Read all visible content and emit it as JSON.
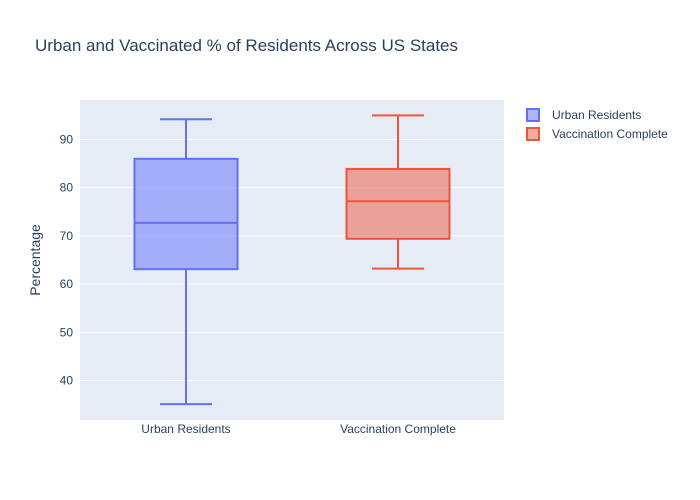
{
  "chart_data": {
    "type": "box",
    "title": "Urban and Vaccinated % of Residents Across US States",
    "xlabel": "",
    "ylabel": "Percentage",
    "ylim": [
      31.8,
      98.2
    ],
    "yticks": [
      40,
      50,
      60,
      70,
      80,
      90
    ],
    "grid": true,
    "legend_position": "top-right",
    "categories": [
      "Urban Residents",
      "Vaccination Complete"
    ],
    "series": [
      {
        "name": "Urban Residents",
        "color": "#636efa",
        "min": 35.1,
        "q1": 63.1,
        "median": 72.7,
        "q3": 86.0,
        "max": 94.2
      },
      {
        "name": "Vaccination Complete",
        "color": "#ef553b",
        "min": 63.2,
        "q1": 69.4,
        "median": 77.2,
        "q3": 83.9,
        "max": 95.0
      }
    ]
  }
}
